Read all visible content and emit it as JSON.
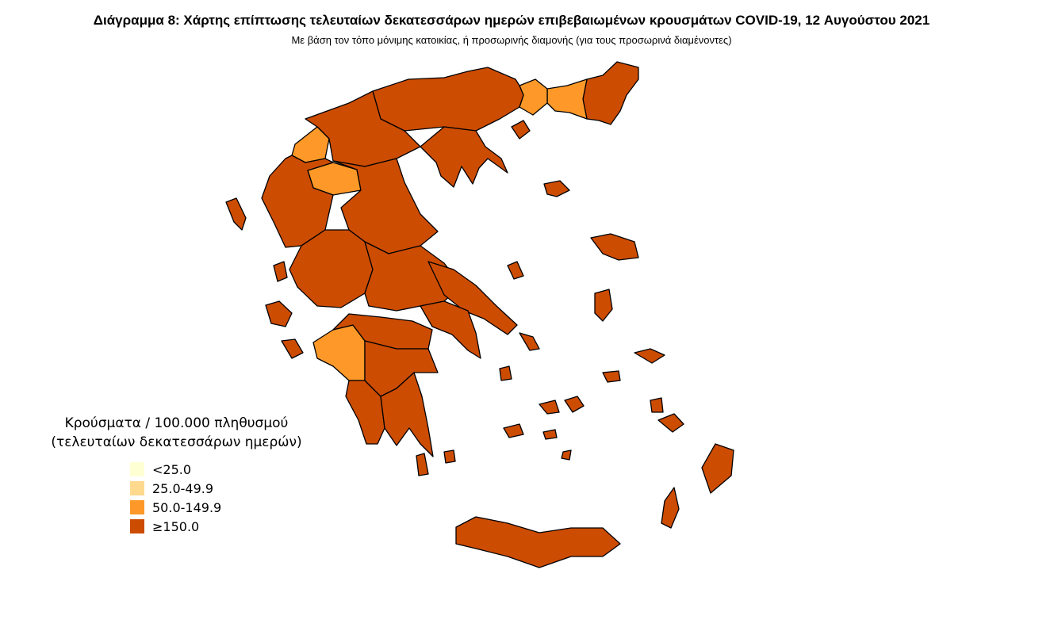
{
  "title": "Διάγραμμα 8: Χάρτης επίπτωσης τελευταίων δεκατεσσάρων ημερών επιβεβαιωμένων κρουσμάτων COVID-19, 12 Αυγούστου 2021",
  "subtitle": "Με βάση τον τόπο μόνιμης κατοικίας, ή προσωρινής διαμονής (για τους προσωρινά διαμένοντες)",
  "legend": {
    "title_line1": "Κρούσματα / 100.000 πληθυσμού",
    "title_line2": "(τελευταίων δεκατεσσάρων ημερών)",
    "items": [
      {
        "label": "<25.0",
        "color": "#FFFFD4"
      },
      {
        "label": "25.0-49.9",
        "color": "#FED98E"
      },
      {
        "label": "50.0-149.9",
        "color": "#FE9929"
      },
      {
        "label": "≥150.0",
        "color": "#CC4C02"
      }
    ]
  },
  "map_data": {
    "border_color": "#000000",
    "regions": [
      {
        "id": "evros",
        "bin": 3
      },
      {
        "id": "xanthi-rodopi",
        "bin": 2
      },
      {
        "id": "kavala",
        "bin": 2
      },
      {
        "id": "central-macedonia",
        "bin": 3
      },
      {
        "id": "chalkidiki",
        "bin": 3
      },
      {
        "id": "west-macedonia",
        "bin": 3
      },
      {
        "id": "kastoria",
        "bin": 2
      },
      {
        "id": "grevena",
        "bin": 2
      },
      {
        "id": "epirus",
        "bin": 3
      },
      {
        "id": "thessaly",
        "bin": 3
      },
      {
        "id": "western-central-greece",
        "bin": 3
      },
      {
        "id": "eastern-central-greece",
        "bin": 3
      },
      {
        "id": "euboea",
        "bin": 3
      },
      {
        "id": "attica",
        "bin": 3
      },
      {
        "id": "ilia",
        "bin": 2
      },
      {
        "id": "achaia-corinthia",
        "bin": 3
      },
      {
        "id": "messinia",
        "bin": 3
      },
      {
        "id": "arcadia-argolida",
        "bin": 3
      },
      {
        "id": "laconia",
        "bin": 3
      },
      {
        "id": "islands",
        "bin": 3
      },
      {
        "id": "crete",
        "bin": 3
      }
    ]
  }
}
